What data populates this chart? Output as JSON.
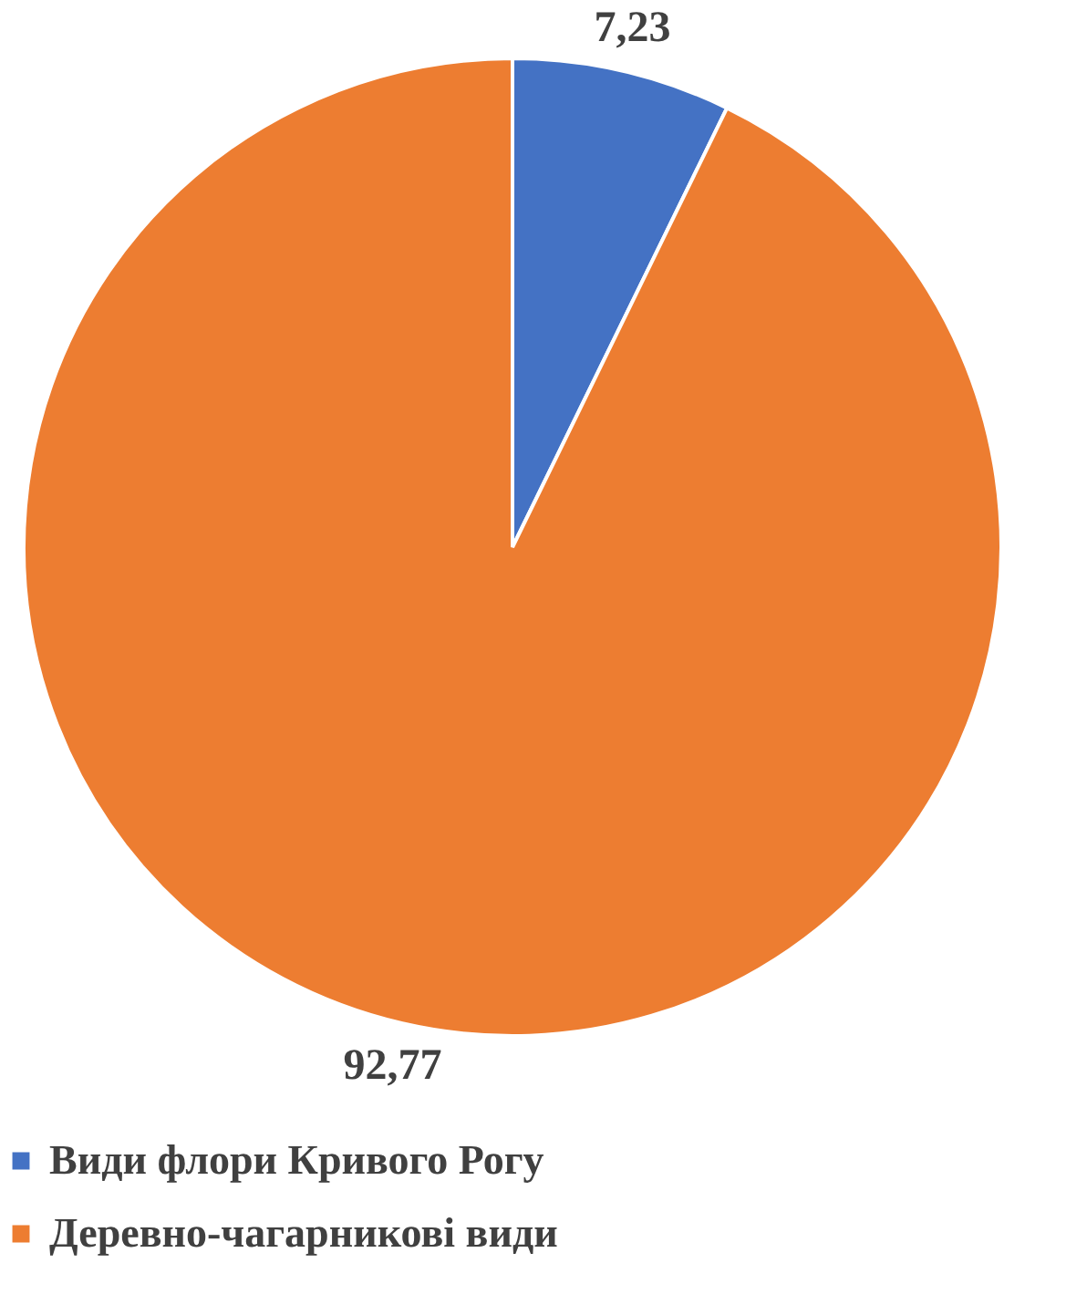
{
  "chart_data": {
    "type": "pie",
    "categories": [
      "Види флори Кривого Рогу",
      "Деревно-чагарникові види"
    ],
    "values": [
      7.23,
      92.77
    ],
    "colors": [
      "#4472c4",
      "#ed7d31"
    ],
    "value_labels": [
      "7,23",
      "92,77"
    ],
    "legend": "bottom"
  }
}
